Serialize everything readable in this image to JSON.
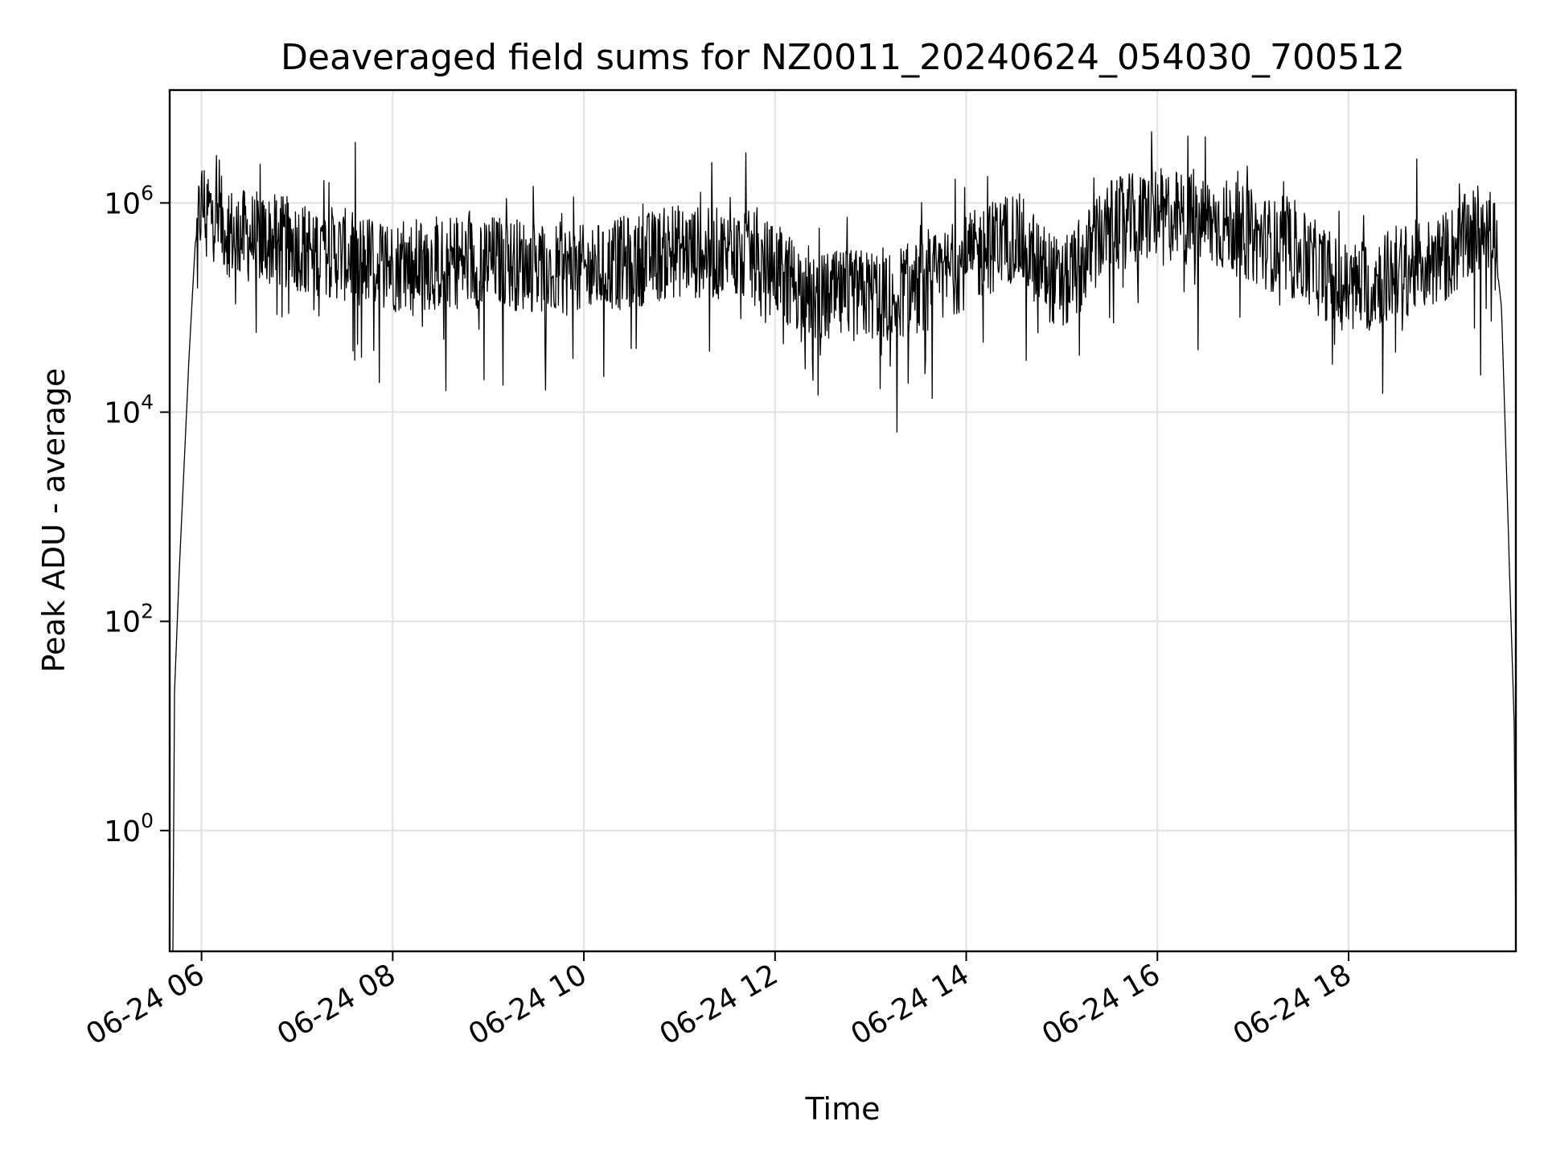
{
  "chart_data": {
    "type": "line",
    "title": "Deaveraged field sums for NZ0011_20240624_054030_700512",
    "xlabel": "Time",
    "ylabel": "Peak ADU - average",
    "x_scale": "time",
    "y_scale": "log",
    "xlim": [
      "2024-06-24T05:40",
      "2024-06-24T19:45"
    ],
    "ylim": [
      0.07,
      12000000
    ],
    "grid": true,
    "x_ticks": [
      {
        "t": "2024-06-24T06:00",
        "label": "06-24 06"
      },
      {
        "t": "2024-06-24T08:00",
        "label": "06-24 08"
      },
      {
        "t": "2024-06-24T10:00",
        "label": "06-24 10"
      },
      {
        "t": "2024-06-24T12:00",
        "label": "06-24 12"
      },
      {
        "t": "2024-06-24T14:00",
        "label": "06-24 14"
      },
      {
        "t": "2024-06-24T16:00",
        "label": "06-24 16"
      },
      {
        "t": "2024-06-24T18:00",
        "label": "06-24 18"
      }
    ],
    "y_ticks": [
      {
        "value": 1,
        "base": "10",
        "exp": "0"
      },
      {
        "value": 100,
        "base": "10",
        "exp": "2"
      },
      {
        "value": 10000,
        "base": "10",
        "exp": "4"
      },
      {
        "value": 1000000,
        "base": "10",
        "exp": "6"
      }
    ],
    "line_color": "#000000",
    "envelope": [
      {
        "t": "2024-06-24T05:42",
        "y": 0.07
      },
      {
        "t": "2024-06-24T05:43",
        "y": 20
      },
      {
        "t": "2024-06-24T05:46",
        "y": 300
      },
      {
        "t": "2024-06-24T05:49",
        "y": 3000
      },
      {
        "t": "2024-06-24T05:52",
        "y": 30000
      },
      {
        "t": "2024-06-24T05:56",
        "y": 400000
      },
      {
        "t": "2024-06-24T06:00",
        "y": 1000000
      },
      {
        "t": "2024-06-24T06:20",
        "y": 500000
      },
      {
        "t": "2024-06-24T07:00",
        "y": 400000
      },
      {
        "t": "2024-06-24T08:00",
        "y": 250000
      },
      {
        "t": "2024-06-24T09:00",
        "y": 280000
      },
      {
        "t": "2024-06-24T10:00",
        "y": 220000
      },
      {
        "t": "2024-06-24T11:00",
        "y": 350000
      },
      {
        "t": "2024-06-24T11:45",
        "y": 300000
      },
      {
        "t": "2024-06-24T12:30",
        "y": 120000
      },
      {
        "t": "2024-06-24T13:30",
        "y": 150000
      },
      {
        "t": "2024-06-24T14:30",
        "y": 500000
      },
      {
        "t": "2024-06-24T15:00",
        "y": 150000
      },
      {
        "t": "2024-06-24T15:30",
        "y": 600000
      },
      {
        "t": "2024-06-24T16:00",
        "y": 800000
      },
      {
        "t": "2024-06-24T16:45",
        "y": 600000
      },
      {
        "t": "2024-06-24T17:30",
        "y": 300000
      },
      {
        "t": "2024-06-24T18:00",
        "y": 150000
      },
      {
        "t": "2024-06-24T19:00",
        "y": 300000
      },
      {
        "t": "2024-06-24T19:30",
        "y": 700000
      },
      {
        "t": "2024-06-24T19:36",
        "y": 100000
      },
      {
        "t": "2024-06-24T19:40",
        "y": 1000
      },
      {
        "t": "2024-06-24T19:44",
        "y": 10
      },
      {
        "t": "2024-06-24T19:45",
        "y": 0.1
      }
    ]
  }
}
